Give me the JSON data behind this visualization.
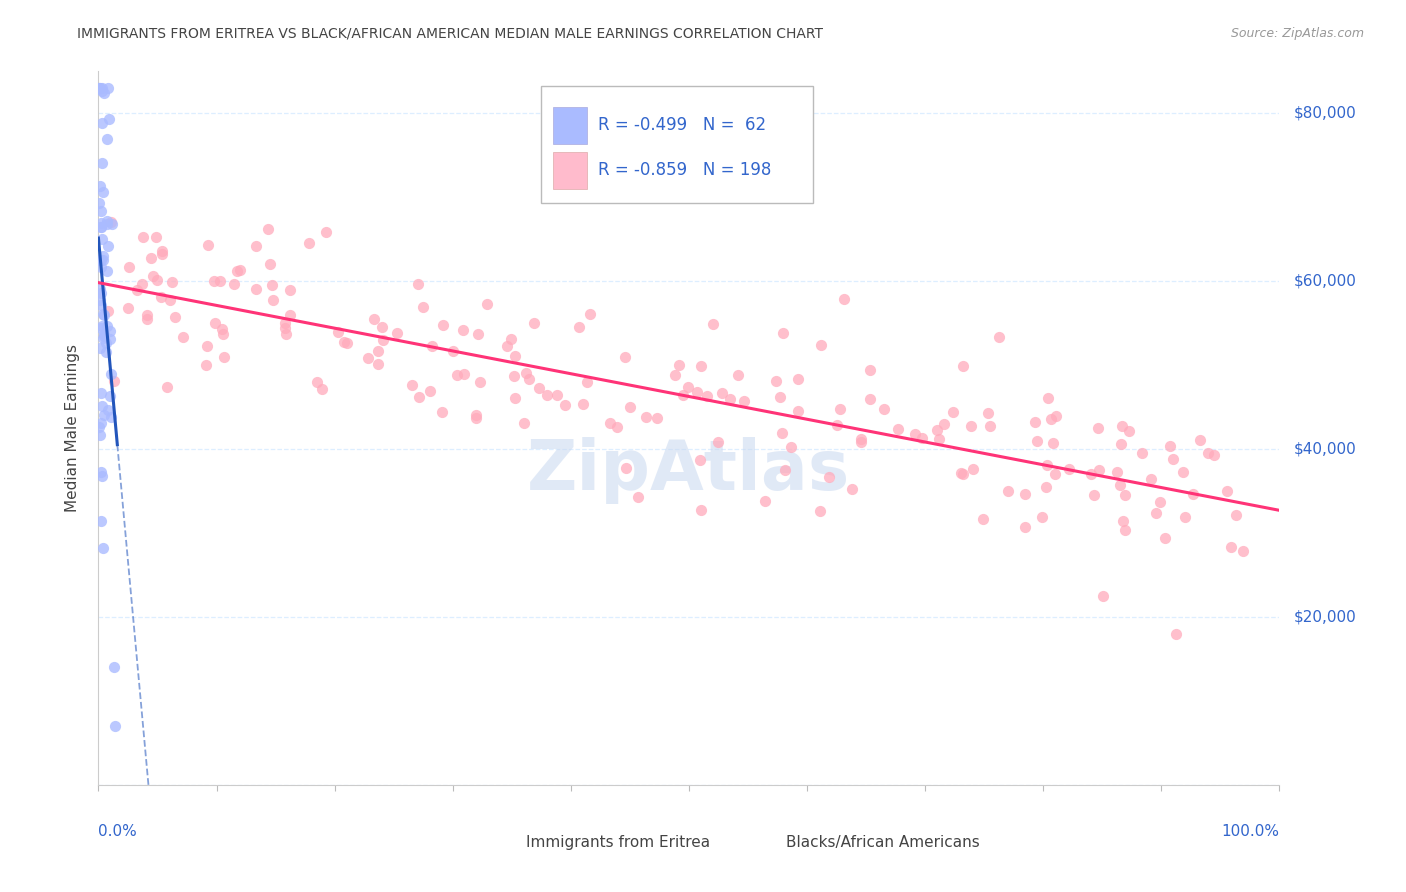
{
  "title": "IMMIGRANTS FROM ERITREA VS BLACK/AFRICAN AMERICAN MEDIAN MALE EARNINGS CORRELATION CHART",
  "source": "Source: ZipAtlas.com",
  "ylabel": "Median Male Earnings",
  "y_ticks": [
    0,
    20000,
    40000,
    60000,
    80000
  ],
  "x_range": [
    0,
    1.0
  ],
  "y_range": [
    0,
    85000
  ],
  "watermark": "ZipAtlas",
  "r1": "-0.499",
  "n1": "62",
  "r2": "-0.859",
  "n2": "198",
  "legend_label1": "Immigrants from Eritrea",
  "legend_label2": "Blacks/African Americans",
  "blue_scatter_color": "#aabbff",
  "pink_scatter_color": "#ffaabb",
  "blue_line_color": "#2255bb",
  "pink_line_color": "#ff3377",
  "axis_value_color": "#3366cc",
  "title_color": "#444444",
  "grid_color": "#ddeeff",
  "background_color": "#ffffff",
  "blue_swatch_color": "#aabbff",
  "pink_swatch_color": "#ffbbcc"
}
